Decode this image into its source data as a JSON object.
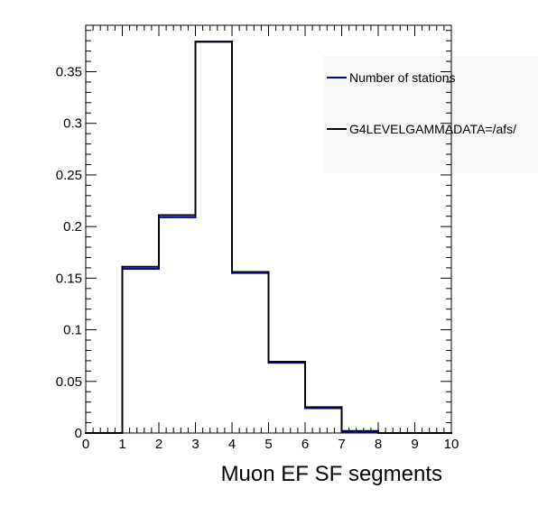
{
  "chart_data": {
    "type": "bar",
    "style": "step-histogram",
    "x": [
      0,
      1,
      2,
      3,
      4,
      5,
      6,
      7,
      8,
      9
    ],
    "bin_width": 1,
    "xlim": [
      0,
      10
    ],
    "ylim": [
      0,
      0.395
    ],
    "xlabel": "Muon EF SF segments",
    "ylabel": "",
    "x_ticks": [
      "0",
      "1",
      "2",
      "3",
      "4",
      "5",
      "6",
      "7",
      "8",
      "9",
      "10"
    ],
    "y_ticks": [
      "0",
      "0.05",
      "0.1",
      "0.15",
      "0.2",
      "0.25",
      "0.3",
      "0.35"
    ],
    "y_tick_values": [
      0,
      0.05,
      0.1,
      0.15,
      0.2,
      0.25,
      0.3,
      0.35
    ],
    "grid": false,
    "legend_position": "top-right",
    "series": [
      {
        "name": "Number of stations",
        "color": "#0000cc",
        "values": [
          0,
          0.159,
          0.209,
          0.379,
          0.155,
          0.068,
          0.024,
          0.001,
          0,
          0
        ]
      },
      {
        "name": "G4LEVELGAMMADATA=/afs/",
        "color": "#000000",
        "values": [
          0,
          0.161,
          0.211,
          0.379,
          0.156,
          0.069,
          0.025,
          0.002,
          0,
          0
        ]
      }
    ]
  }
}
